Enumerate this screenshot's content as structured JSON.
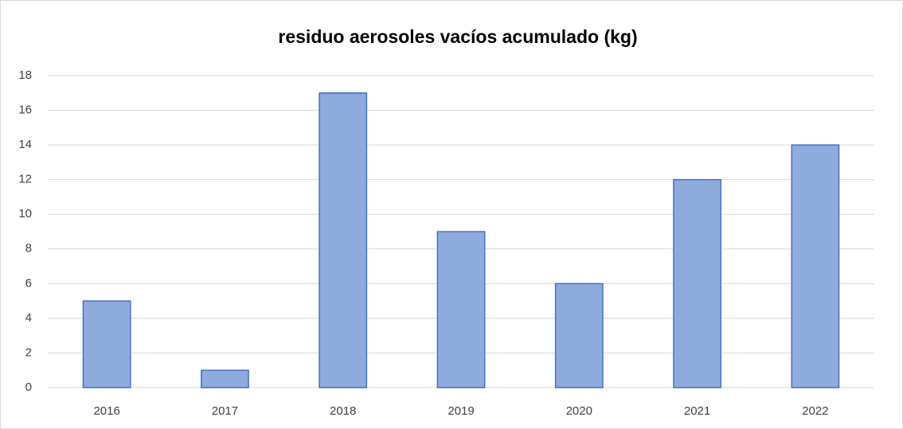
{
  "chart_data": {
    "type": "bar",
    "title": "residuo aerosoles vacíos acumulado (kg)",
    "categories": [
      "2016",
      "2017",
      "2018",
      "2019",
      "2020",
      "2021",
      "2022"
    ],
    "values": [
      5,
      1,
      17,
      9,
      6,
      12,
      14
    ],
    "color": "#8faadc",
    "edge_color": "#4472c4",
    "ylim": [
      0,
      18
    ],
    "yticks": [
      0,
      2,
      4,
      6,
      8,
      10,
      12,
      14,
      16,
      18
    ],
    "grid": true
  }
}
